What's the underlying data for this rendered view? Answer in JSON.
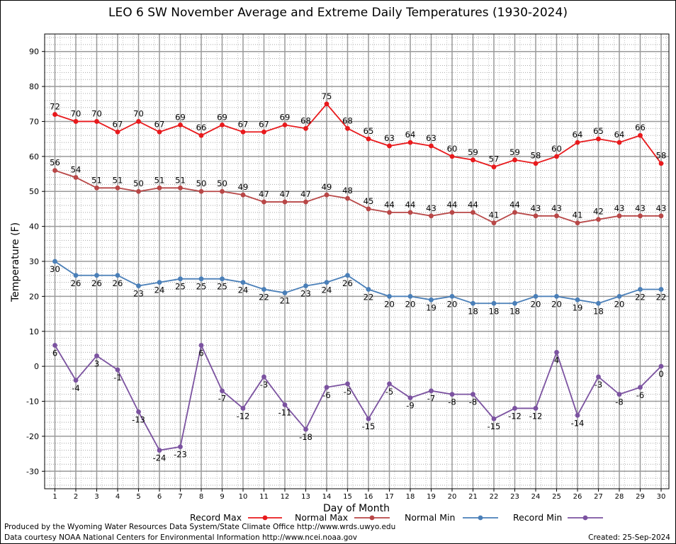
{
  "chart_data": {
    "type": "line",
    "title": "LEO 6 SW November Average and Extreme Daily Temperatures (1930-2024)",
    "xlabel": "Day of Month",
    "ylabel": "Temperature (F)",
    "ylim": [
      -35,
      95
    ],
    "yticks": [
      -30,
      -20,
      -10,
      0,
      10,
      20,
      30,
      40,
      50,
      60,
      70,
      80,
      90
    ],
    "x": [
      1,
      2,
      3,
      4,
      5,
      6,
      7,
      8,
      9,
      10,
      11,
      12,
      13,
      14,
      15,
      16,
      17,
      18,
      19,
      20,
      21,
      22,
      23,
      24,
      25,
      26,
      27,
      28,
      29,
      30
    ],
    "grid": true,
    "legend_position": "bottom",
    "series": [
      {
        "name": "Record Max",
        "color": "#e8191c",
        "label_pos": "above",
        "values": [
          72,
          70,
          70,
          67,
          70,
          67,
          69,
          66,
          69,
          67,
          67,
          69,
          68,
          75,
          68,
          65,
          63,
          64,
          63,
          60,
          59,
          57,
          59,
          58,
          60,
          64,
          65,
          64,
          66,
          58
        ]
      },
      {
        "name": "Normal Max",
        "color": "#b84747",
        "label_pos": "above",
        "values": [
          56,
          54,
          51,
          51,
          50,
          51,
          51,
          50,
          50,
          49,
          47,
          47,
          47,
          49,
          48,
          45,
          44,
          44,
          43,
          44,
          44,
          41,
          44,
          43,
          43,
          41,
          42,
          43,
          43,
          43
        ]
      },
      {
        "name": "Normal Min",
        "color": "#4a7fb8",
        "label_pos": "below",
        "values": [
          30,
          26,
          26,
          26,
          23,
          24,
          25,
          25,
          25,
          24,
          22,
          21,
          23,
          24,
          26,
          22,
          20,
          20,
          19,
          20,
          18,
          18,
          18,
          20,
          20,
          19,
          18,
          20,
          22,
          22
        ]
      },
      {
        "name": "Record Min",
        "color": "#7b52a0",
        "label_pos": "below",
        "values": [
          6,
          -4,
          3,
          -1,
          -13,
          -24,
          -23,
          6,
          -7,
          -12,
          -3,
          -11,
          -18,
          -6,
          -5,
          -15,
          -5,
          -9,
          -7,
          -8,
          -8,
          -15,
          -12,
          -12,
          4,
          -14,
          -3,
          -8,
          -6,
          0
        ]
      }
    ]
  },
  "footer": {
    "produced_by": "Produced by the Wyoming Water Resources Data System/State Climate Office http://www.wrds.uwyo.edu",
    "data_courtesy": "Data courtesy NOAA National Centers for Environmental Information http://www.ncei.noaa.gov",
    "created": "Created:  25-Sep-2024"
  }
}
